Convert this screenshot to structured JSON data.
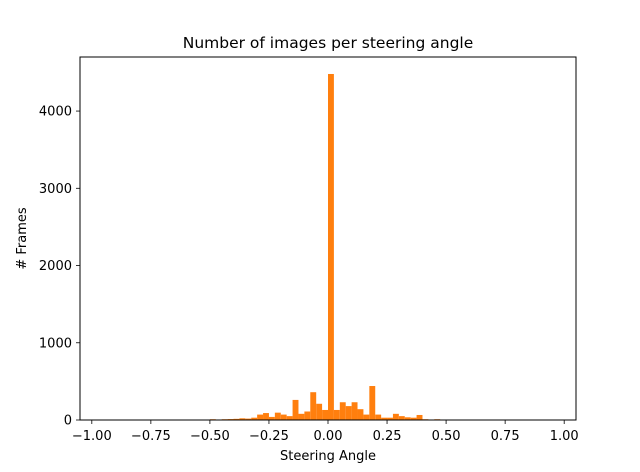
{
  "chart_data": {
    "type": "bar",
    "title": "Number of images per steering angle",
    "xlabel": "Steering Angle",
    "ylabel": "# Frames",
    "xlim": [
      -1.05,
      1.05
    ],
    "ylim": [
      0,
      4700
    ],
    "xticks": [
      -1.0,
      -0.75,
      -0.5,
      -0.25,
      0.0,
      0.25,
      0.5,
      0.75,
      1.0
    ],
    "xtick_labels": [
      "−1.00",
      "−0.75",
      "−0.50",
      "−0.25",
      "0.00",
      "0.25",
      "0.50",
      "0.75",
      "1.00"
    ],
    "yticks": [
      0,
      1000,
      2000,
      3000,
      4000
    ],
    "ytick_labels": [
      "0",
      "1000",
      "2000",
      "3000",
      "4000"
    ],
    "grid": false,
    "bar_color": "#ff7f0e",
    "bin_width": 0.025,
    "bins": [
      {
        "x": -0.5,
        "value": 10
      },
      {
        "x": -0.475,
        "value": 5
      },
      {
        "x": -0.45,
        "value": 10
      },
      {
        "x": -0.425,
        "value": 12
      },
      {
        "x": -0.4,
        "value": 15
      },
      {
        "x": -0.375,
        "value": 22
      },
      {
        "x": -0.35,
        "value": 18
      },
      {
        "x": -0.325,
        "value": 30
      },
      {
        "x": -0.3,
        "value": 70
      },
      {
        "x": -0.275,
        "value": 90
      },
      {
        "x": -0.25,
        "value": 40
      },
      {
        "x": -0.225,
        "value": 95
      },
      {
        "x": -0.2,
        "value": 70
      },
      {
        "x": -0.175,
        "value": 50
      },
      {
        "x": -0.15,
        "value": 260
      },
      {
        "x": -0.125,
        "value": 80
      },
      {
        "x": -0.1,
        "value": 110
      },
      {
        "x": -0.075,
        "value": 360
      },
      {
        "x": -0.05,
        "value": 210
      },
      {
        "x": -0.025,
        "value": 130
      },
      {
        "x": 0.0,
        "value": 4480
      },
      {
        "x": 0.025,
        "value": 130
      },
      {
        "x": 0.05,
        "value": 230
      },
      {
        "x": 0.075,
        "value": 180
      },
      {
        "x": 0.1,
        "value": 230
      },
      {
        "x": 0.125,
        "value": 140
      },
      {
        "x": 0.15,
        "value": 70
      },
      {
        "x": 0.175,
        "value": 440
      },
      {
        "x": 0.2,
        "value": 70
      },
      {
        "x": 0.225,
        "value": 30
      },
      {
        "x": 0.25,
        "value": 30
      },
      {
        "x": 0.275,
        "value": 80
      },
      {
        "x": 0.3,
        "value": 50
      },
      {
        "x": 0.325,
        "value": 35
      },
      {
        "x": 0.35,
        "value": 30
      },
      {
        "x": 0.375,
        "value": 65
      },
      {
        "x": 0.4,
        "value": 10
      },
      {
        "x": 0.425,
        "value": 5
      },
      {
        "x": 0.45,
        "value": 10
      },
      {
        "x": 0.475,
        "value": 5
      }
    ]
  }
}
